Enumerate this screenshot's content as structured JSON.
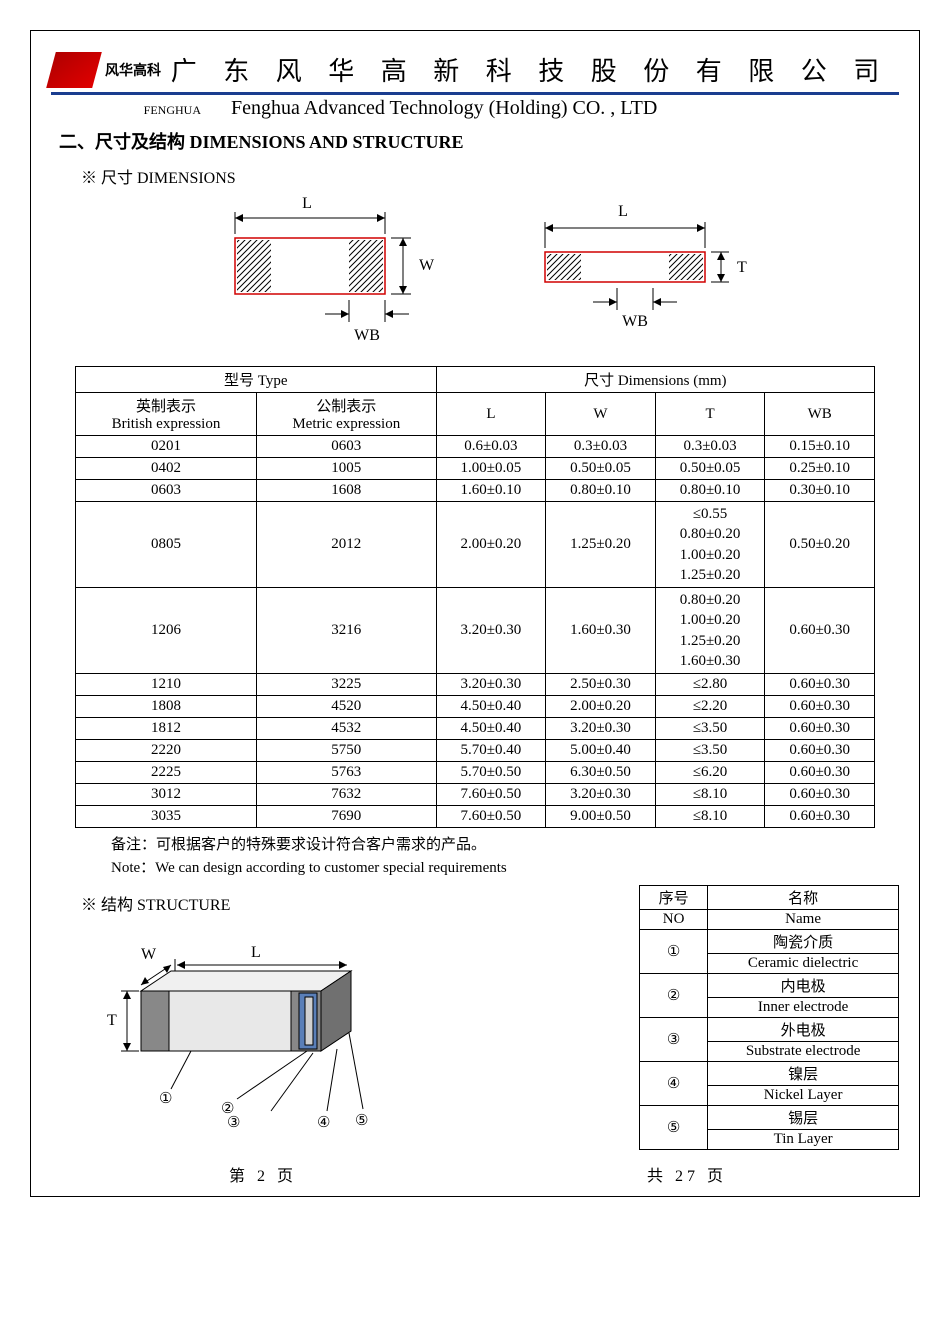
{
  "header": {
    "logo_text": "风华高科",
    "company_cn": "广 东 风 华 高 新 科 技 股 份 有 限 公 司",
    "fenghua_label": "FENGHUA",
    "company_en": "Fenghua Advanced Technology (Holding) CO. , LTD"
  },
  "section_title": "二、尺寸及结构   DIMENSIONS AND STRUCTURE",
  "dimensions_label": "※ 尺寸 DIMENSIONS",
  "structure_label": "※ 结构 STRUCTURE",
  "diagram": {
    "L": "L",
    "W": "W",
    "T": "T",
    "WB": "WB",
    "hatch_color": "#000000",
    "line_color": "#d00000",
    "stroke": "#000000"
  },
  "dim_table": {
    "header_type": "型号 Type",
    "header_dim": "尺寸    Dimensions     (mm)",
    "col_british_cn": "英制表示",
    "col_british_en": "British expression",
    "col_metric_cn": "公制表示",
    "col_metric_en": "Metric expression",
    "cols": [
      "L",
      "W",
      "T",
      "WB"
    ],
    "rows": [
      {
        "b": "0201",
        "m": "0603",
        "L": "0.6±0.03",
        "W": "0.3±0.03",
        "T": "0.3±0.03",
        "WB": "0.15±0.10"
      },
      {
        "b": "0402",
        "m": "1005",
        "L": "1.00±0.05",
        "W": "0.50±0.05",
        "T": "0.50±0.05",
        "WB": "0.25±0.10"
      },
      {
        "b": "0603",
        "m": "1608",
        "L": "1.60±0.10",
        "W": "0.80±0.10",
        "T": "0.80±0.10",
        "WB": "0.30±0.10"
      },
      {
        "b": "0805",
        "m": "2012",
        "L": "2.00±0.20",
        "W": "1.25±0.20",
        "T": [
          "≤0.55",
          "0.80±0.20",
          "1.00±0.20",
          "1.25±0.20"
        ],
        "WB": "0.50±0.20"
      },
      {
        "b": "1206",
        "m": "3216",
        "L": "3.20±0.30",
        "W": "1.60±0.30",
        "T": [
          "0.80±0.20",
          "1.00±0.20",
          "1.25±0.20",
          "1.60±0.30"
        ],
        "WB": "0.60±0.30"
      },
      {
        "b": "1210",
        "m": "3225",
        "L": "3.20±0.30",
        "W": "2.50±0.30",
        "T": "≤2.80",
        "WB": "0.60±0.30"
      },
      {
        "b": "1808",
        "m": "4520",
        "L": "4.50±0.40",
        "W": "2.00±0.20",
        "T": "≤2.20",
        "WB": "0.60±0.30"
      },
      {
        "b": "1812",
        "m": "4532",
        "L": "4.50±0.40",
        "W": "3.20±0.30",
        "T": "≤3.50",
        "WB": "0.60±0.30"
      },
      {
        "b": "2220",
        "m": "5750",
        "L": "5.70±0.40",
        "W": "5.00±0.40",
        "T": "≤3.50",
        "WB": "0.60±0.30"
      },
      {
        "b": "2225",
        "m": "5763",
        "L": "5.70±0.50",
        "W": "6.30±0.50",
        "T": "≤6.20",
        "WB": "0.60±0.30"
      },
      {
        "b": "3012",
        "m": "7632",
        "L": "7.60±0.50",
        "W": "3.20±0.30",
        "T": "≤8.10",
        "WB": "0.60±0.30"
      },
      {
        "b": "3035",
        "m": "7690",
        "L": "7.60±0.50",
        "W": "9.00±0.50",
        "T": "≤8.10",
        "WB": "0.60±0.30"
      }
    ]
  },
  "notes": {
    "cn": "备注：可根据客户的特殊要求设计符合客户需求的产品。",
    "en": "Note：We can design according to customer special requirements"
  },
  "structure_table": {
    "col_no_cn": "序号",
    "col_no_en": "NO",
    "col_name_cn": "名称",
    "col_name_en": "Name",
    "rows": [
      {
        "no": "①",
        "cn": "陶瓷介质",
        "en": "Ceramic   dielectric"
      },
      {
        "no": "②",
        "cn": "内电极",
        "en": "Inner   electrode"
      },
      {
        "no": "③",
        "cn": "外电极",
        "en": "Substrate   electrode"
      },
      {
        "no": "④",
        "cn": "镍层",
        "en": "Nickel Layer"
      },
      {
        "no": "⑤",
        "cn": "锡层",
        "en": "Tin Layer"
      }
    ]
  },
  "structure_diagram": {
    "colors": {
      "body": "#e8e8e8",
      "electrode_outer": "#888888",
      "electrode_mid": "#5a7fb8",
      "electrode_inner": "#d0d0d0",
      "line": "#000000"
    },
    "labels": {
      "W": "W",
      "L": "L",
      "T": "T"
    }
  },
  "footer": {
    "left": "第  2  页",
    "right": "共  27  页"
  }
}
